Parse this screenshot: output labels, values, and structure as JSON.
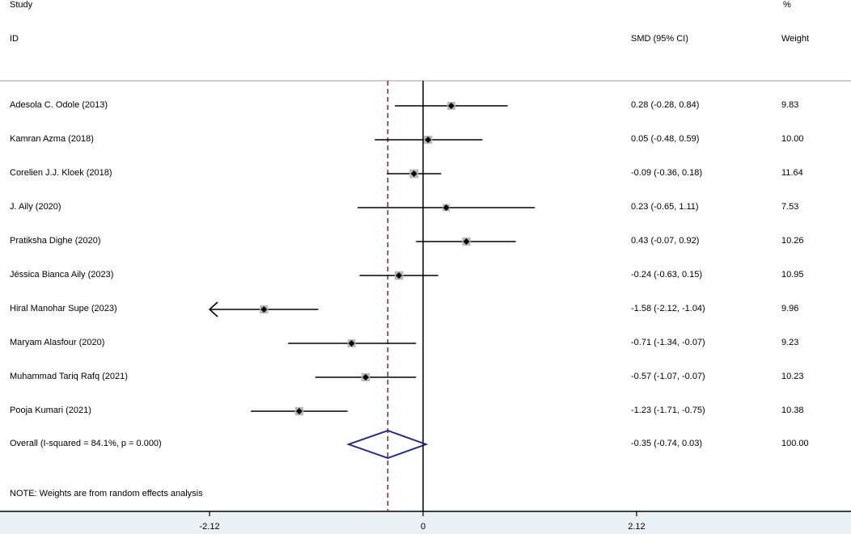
{
  "header": {
    "study_label": "Study",
    "id_label": "ID",
    "pct_label": "%",
    "ci_label": "SMD (95% CI)",
    "weight_label": "Weight"
  },
  "note": "NOTE: Weights are from random effects analysis",
  "colors": {
    "estimate_box": "#b8b8b8",
    "estimate_dot": "#000000",
    "ci_line": "#000000",
    "null_line": "#000000",
    "overall_line": "#a01020",
    "diamond": "#1a237e",
    "axis_band": "#eaf1f5"
  },
  "chart_data": {
    "type": "forest",
    "xlabel": "",
    "axis_ticks": [
      -2.12,
      0,
      2.12
    ],
    "axis_tick_labels": [
      "-2.12",
      "0",
      "2.12"
    ],
    "xlim": [
      -2.12,
      2.12
    ],
    "null_value": 0,
    "studies": [
      {
        "label": "Adesola C. Odole (2013)",
        "smd": 0.28,
        "lower": -0.28,
        "upper": 0.84,
        "ci_text": "0.28 (-0.28, 0.84)",
        "weight": 9.83,
        "weight_text": "9.83"
      },
      {
        "label": "Kamran Azma (2018)",
        "smd": 0.05,
        "lower": -0.48,
        "upper": 0.59,
        "ci_text": "0.05 (-0.48, 0.59)",
        "weight": 10.0,
        "weight_text": "10.00"
      },
      {
        "label": "Corelien J.J. Kloek (2018)",
        "smd": -0.09,
        "lower": -0.36,
        "upper": 0.18,
        "ci_text": "-0.09 (-0.36, 0.18)",
        "weight": 11.64,
        "weight_text": "11.64"
      },
      {
        "label": "J. Aily (2020)",
        "smd": 0.23,
        "lower": -0.65,
        "upper": 1.11,
        "ci_text": "0.23 (-0.65, 1.11)",
        "weight": 7.53,
        "weight_text": "7.53"
      },
      {
        "label": "Pratiksha Dighe (2020)",
        "smd": 0.43,
        "lower": -0.07,
        "upper": 0.92,
        "ci_text": "0.43 (-0.07, 0.92)",
        "weight": 10.26,
        "weight_text": "10.26"
      },
      {
        "label": "Jéssica Bianca Aily (2023)",
        "smd": -0.24,
        "lower": -0.63,
        "upper": 0.15,
        "ci_text": "-0.24 (-0.63, 0.15)",
        "weight": 10.95,
        "weight_text": "10.95"
      },
      {
        "label": "Hiral Manohar Supe (2023)",
        "smd": -1.58,
        "lower": -2.12,
        "upper": -1.04,
        "ci_text": "-1.58 (-2.12, -1.04)",
        "weight": 9.96,
        "weight_text": "9.96"
      },
      {
        "label": "Maryam Alasfour (2020)",
        "smd": -0.71,
        "lower": -1.34,
        "upper": -0.07,
        "ci_text": "-0.71 (-1.34, -0.07)",
        "weight": 9.23,
        "weight_text": "9.23"
      },
      {
        "label": "Muhammad Tariq Rafq (2021)",
        "smd": -0.57,
        "lower": -1.07,
        "upper": -0.07,
        "ci_text": "-0.57 (-1.07, -0.07)",
        "weight": 10.23,
        "weight_text": "10.23"
      },
      {
        "label": "Pooja Kumari (2021)",
        "smd": -1.23,
        "lower": -1.71,
        "upper": -0.75,
        "ci_text": "-1.23 (-1.71, -0.75)",
        "weight": 10.38,
        "weight_text": "10.38"
      }
    ],
    "overall": {
      "label": "Overall  (I-squared = 84.1%, p = 0.000)",
      "smd": -0.35,
      "lower": -0.74,
      "upper": 0.03,
      "ci_text": "-0.35 (-0.74, 0.03)",
      "weight_text": "100.00"
    }
  }
}
